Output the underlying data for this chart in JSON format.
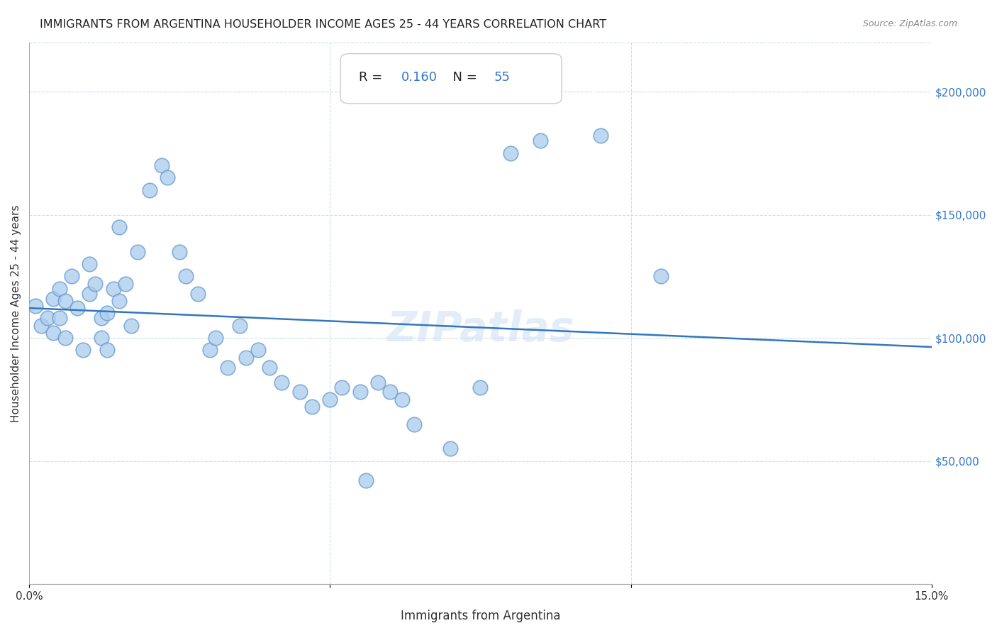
{
  "title": "IMMIGRANTS FROM ARGENTINA HOUSEHOLDER INCOME AGES 25 - 44 YEARS CORRELATION CHART",
  "source": "Source: ZipAtlas.com",
  "xlabel": "Immigrants from Argentina",
  "ylabel": "Householder Income Ages 25 - 44 years",
  "R": 0.16,
  "N": 55,
  "xlim": [
    0.0,
    0.15
  ],
  "ylim": [
    0,
    220000
  ],
  "xticks": [
    0.0,
    0.05,
    0.1,
    0.15
  ],
  "xticklabels": [
    "0.0%",
    "",
    "",
    "15.0%"
  ],
  "ytick_labels_right": [
    "$50,000",
    "$100,000",
    "$150,000",
    "$200,000"
  ],
  "ytick_vals_right": [
    50000,
    100000,
    150000,
    200000
  ],
  "watermark": "ZIPatlas",
  "scatter_color_fill": "#aaccee",
  "scatter_color_edge": "#6699cc",
  "line_color": "#3377bb",
  "background_color": "#ffffff",
  "grid_color": "#ccddee",
  "scatter_x": [
    0.001,
    0.002,
    0.003,
    0.004,
    0.004,
    0.005,
    0.005,
    0.006,
    0.006,
    0.007,
    0.008,
    0.009,
    0.01,
    0.01,
    0.011,
    0.012,
    0.012,
    0.013,
    0.013,
    0.014,
    0.015,
    0.015,
    0.016,
    0.017,
    0.018,
    0.02,
    0.022,
    0.023,
    0.025,
    0.026,
    0.028,
    0.03,
    0.031,
    0.033,
    0.035,
    0.036,
    0.038,
    0.04,
    0.042,
    0.045,
    0.047,
    0.05,
    0.052,
    0.055,
    0.056,
    0.058,
    0.06,
    0.062,
    0.064,
    0.07,
    0.075,
    0.08,
    0.085,
    0.095,
    0.105
  ],
  "scatter_y": [
    113000,
    105000,
    108000,
    116000,
    102000,
    120000,
    108000,
    115000,
    100000,
    125000,
    112000,
    95000,
    130000,
    118000,
    122000,
    108000,
    100000,
    110000,
    95000,
    120000,
    145000,
    115000,
    122000,
    105000,
    135000,
    160000,
    170000,
    165000,
    135000,
    125000,
    118000,
    95000,
    100000,
    88000,
    105000,
    92000,
    95000,
    88000,
    82000,
    78000,
    72000,
    75000,
    80000,
    78000,
    42000,
    82000,
    78000,
    75000,
    65000,
    55000,
    80000,
    175000,
    180000,
    182000,
    125000
  ]
}
